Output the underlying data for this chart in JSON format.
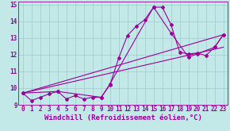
{
  "xlabel": "Windchill (Refroidissement éolien,°C)",
  "bg_color": "#c2e8e8",
  "line_color": "#990099",
  "grid_color": "#a0cccc",
  "xlim": [
    -0.5,
    23.5
  ],
  "ylim": [
    9,
    15.2
  ],
  "xticks": [
    0,
    1,
    2,
    3,
    4,
    5,
    6,
    7,
    8,
    9,
    10,
    11,
    12,
    13,
    14,
    15,
    16,
    17,
    18,
    19,
    20,
    21,
    22,
    23
  ],
  "yticks": [
    9,
    10,
    11,
    12,
    13,
    14,
    15
  ],
  "line1_x": [
    0,
    1,
    2,
    3,
    4,
    5,
    6,
    7,
    8,
    9,
    10,
    11,
    12,
    13,
    14,
    15,
    16,
    17,
    18,
    19,
    20,
    21,
    22,
    23
  ],
  "line1_y": [
    9.7,
    9.25,
    9.45,
    9.65,
    9.8,
    9.35,
    9.55,
    9.35,
    9.45,
    9.45,
    10.2,
    11.8,
    13.15,
    13.7,
    14.1,
    14.85,
    14.85,
    13.8,
    12.15,
    12.05,
    12.1,
    11.95,
    12.45,
    13.2
  ],
  "line2_x": [
    0,
    4,
    9,
    10,
    15,
    17,
    19,
    20,
    22,
    23
  ],
  "line2_y": [
    9.7,
    9.8,
    9.45,
    10.25,
    14.85,
    13.3,
    11.85,
    12.05,
    12.45,
    13.2
  ],
  "line3_x": [
    0,
    23
  ],
  "line3_y": [
    9.7,
    13.2
  ],
  "line4_x": [
    0,
    23
  ],
  "line4_y": [
    9.7,
    12.45
  ],
  "tick_label_fontsize": 5.5,
  "xlabel_fontsize": 6.5,
  "marker": "D",
  "markersize": 2.0,
  "linewidth": 0.8
}
